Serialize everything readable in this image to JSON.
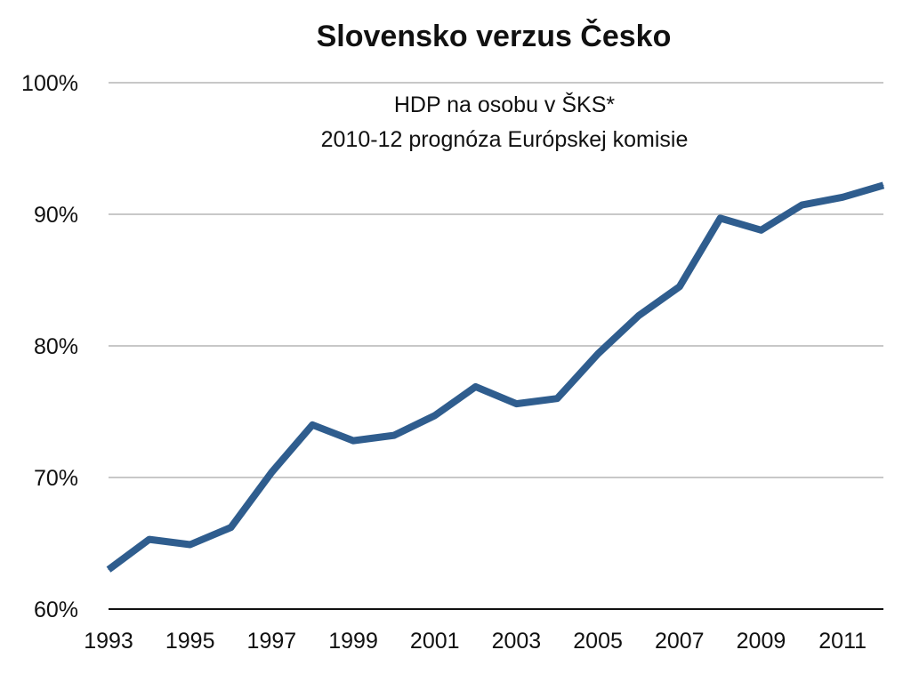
{
  "chart_data": {
    "type": "line",
    "title": "Slovensko verzus Česko",
    "subtitle_lines": [
      "HDP na osobu v ŠKS*",
      "2010-12 prognóza Európskej komisie"
    ],
    "xlabel": "",
    "ylabel": "",
    "x": [
      1993,
      1994,
      1995,
      1996,
      1997,
      1998,
      1999,
      2000,
      2001,
      2002,
      2003,
      2004,
      2005,
      2006,
      2007,
      2008,
      2009,
      2010,
      2011,
      2012
    ],
    "x_tick_labels": [
      "1993",
      "1995",
      "1997",
      "1999",
      "2001",
      "2003",
      "2005",
      "2007",
      "2009",
      "2011"
    ],
    "x_tick_values": [
      1993,
      1995,
      1997,
      1999,
      2001,
      2003,
      2005,
      2007,
      2009,
      2011
    ],
    "xlim": [
      1993,
      2012
    ],
    "y_tick_labels": [
      "60%",
      "70%",
      "80%",
      "90%",
      "100%"
    ],
    "y_tick_values": [
      60,
      70,
      80,
      90,
      100
    ],
    "ylim": [
      60,
      100
    ],
    "grid": true,
    "series": [
      {
        "values": [
          63.0,
          65.3,
          64.9,
          66.2,
          70.4,
          74.0,
          72.8,
          73.2,
          74.7,
          76.9,
          75.6,
          76.0,
          79.4,
          82.3,
          84.5,
          89.7,
          88.8,
          90.7,
          91.3,
          92.2
        ],
        "color": "#2f5d8e"
      }
    ]
  }
}
